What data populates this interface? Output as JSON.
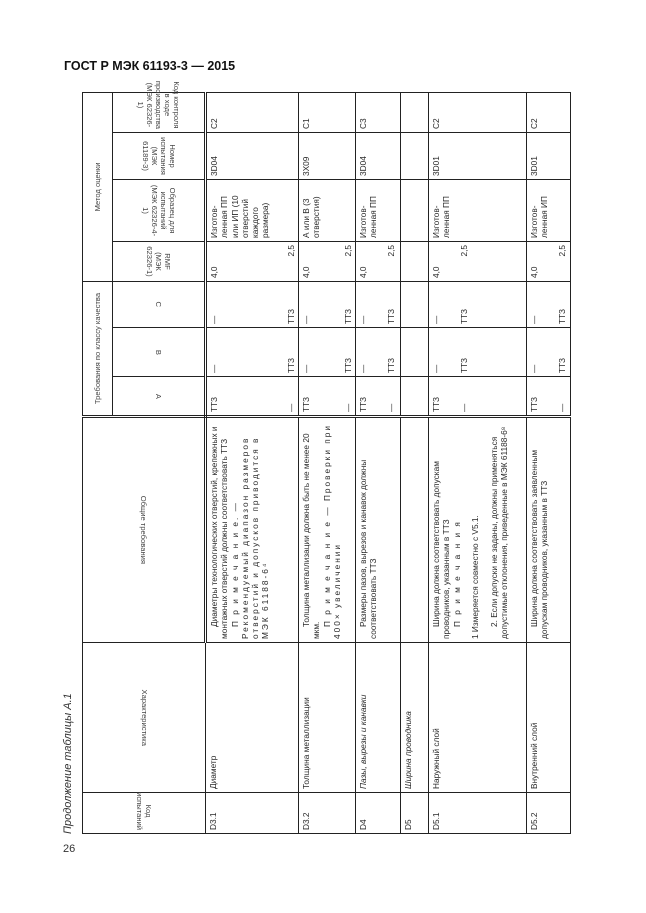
{
  "header": {
    "doc_title": "ГОСТ Р МЭК 61193-3 — 2015",
    "caption": "Продолжение таблицы А.1",
    "page_number": "26"
  },
  "columns": {
    "code": "Код испытаний",
    "characteristic": "Характеристика",
    "general": "Общие требования",
    "quality_group": "Требования по классу качества",
    "a": "A",
    "b": "B",
    "c": "C",
    "method_group": "Метод оценки",
    "rmf": "RMF (МЭК 62326-1)",
    "sample": "Образец для испытаний (МЭК 62326-4-1)",
    "test_no": "Номер испытания (МЭК 61189-3)",
    "control": "Код контроля в ходе производства (МЭК 62326-1)"
  },
  "rows": [
    {
      "code": "D3.1",
      "characteristic": "Диаметр",
      "general": [
        "Диаметры технологических отверстий, крепежных и монтажных отверстий должны соответствовать ТТЗ",
        "П р и м е ч а н и е. — Рекомендуемый диапазон размеров отверстий и допусков приводится в МЭК 61188-6⁴"
      ],
      "a": [
        "ТТЗ",
        "—"
      ],
      "b": [
        "—",
        "ТТЗ"
      ],
      "c": [
        "—",
        "ТТЗ"
      ],
      "rmf": [
        "4,0",
        "2,5"
      ],
      "sample": "Изготов-ленная ПП или ИП (10 отверстий каждого размера)",
      "test_no": "3D04",
      "control": "C2"
    },
    {
      "code": "D3.2",
      "characteristic": "Толщина металлизации",
      "general": [
        "Толщина металлизации должна быть не менее 20 мкм.",
        "П р и м е ч а н и е — Проверки при 400× увеличении"
      ],
      "a": [
        "ТТЗ",
        "—"
      ],
      "b": [
        "—",
        "ТТЗ"
      ],
      "c": [
        "—",
        "ТТЗ"
      ],
      "rmf": [
        "4,0",
        "2,5"
      ],
      "sample": "А или В (3 отверстия)",
      "test_no": "3X09",
      "control": "C1"
    },
    {
      "code": "D4",
      "characteristic": "Пазы, вырезы и канавки",
      "general": [
        "Размеры пазов, вырезов и канавок должны соответствовать ТТЗ"
      ],
      "a": [
        "ТТЗ",
        "—"
      ],
      "b": [
        "—",
        "ТТЗ"
      ],
      "c": [
        "—",
        "ТТЗ"
      ],
      "rmf": [
        "4,0",
        "2,5"
      ],
      "sample": "Изготов-ленная ПП",
      "test_no": "3D04",
      "control": "C3"
    },
    {
      "code": "D5",
      "characteristic": "Ширина проводника",
      "general": [],
      "a": [
        "",
        ""
      ],
      "b": [
        "",
        ""
      ],
      "c": [
        "",
        ""
      ],
      "rmf": [
        "",
        ""
      ],
      "sample": "",
      "test_no": "",
      "control": ""
    },
    {
      "code": "D5.1",
      "characteristic": "Наружный слой",
      "general": [
        "Ширина должна соответствовать допускам проводников, указанным в ТТЗ",
        "П р и м е ч а н и я",
        "1 Измеряется совместно с V5.1.",
        "2. Если допуски не заданы, должны применяться допустимые отклонения, приведенные в МЭК 61188-6⁸"
      ],
      "a": [
        "ТТЗ",
        "—"
      ],
      "b": [
        "—",
        "ТТЗ"
      ],
      "c": [
        "—",
        "ТТЗ"
      ],
      "rmf": [
        "4,0",
        "2,5"
      ],
      "sample": "Изготов-ленная ПП",
      "test_no": "3D01",
      "control": "C2"
    },
    {
      "code": "D5.2",
      "characteristic": "Внутренний слой",
      "general": [
        "Ширина должна соответствовать заявленным допускам проводников, указанным в ТТЗ"
      ],
      "a": [
        "ТТЗ",
        "—"
      ],
      "b": [
        "—",
        "ТТЗ"
      ],
      "c": [
        "—",
        "ТТЗ"
      ],
      "rmf": [
        "4,0",
        "2,5"
      ],
      "sample": "Изготов-ленная ИП",
      "test_no": "3D01",
      "control": "C2"
    }
  ]
}
